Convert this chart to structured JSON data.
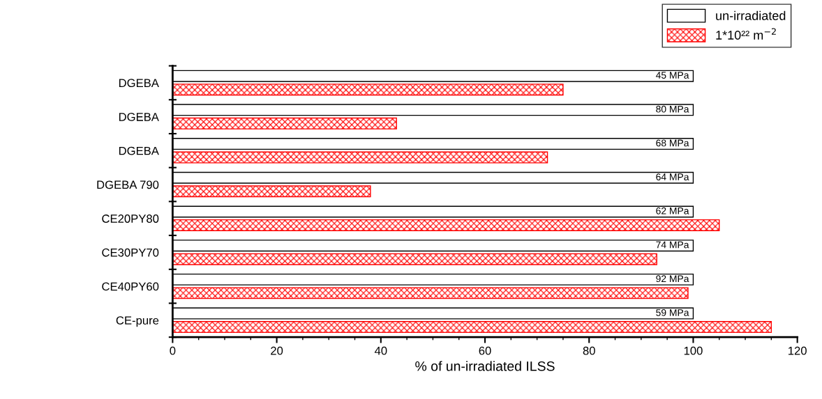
{
  "chart_data": {
    "type": "bar",
    "orientation": "horizontal",
    "xlabel": "% of un-irradiated ILSS",
    "categories": [
      "DGEBA",
      "DGEBA",
      "DGEBA",
      "DGEBA 790",
      "CE20PY80",
      "CE30PY70",
      "CE40PY60",
      "CE-pure"
    ],
    "series": [
      {
        "name": "un-irradiated",
        "color": "#ffffff",
        "values": [
          100,
          100,
          100,
          100,
          100,
          100,
          100,
          100
        ]
      },
      {
        "name": "1*10²² m$^{−2}$",
        "color": "#ff0000",
        "values": [
          75,
          43,
          72,
          38,
          105,
          93,
          99,
          115
        ]
      }
    ],
    "annotations": [
      "45 MPa",
      "80 MPa",
      "68 MPa",
      "64 MPa",
      "62 MPa",
      "74 MPa",
      "92 MPa",
      "59 MPa"
    ],
    "xlim": [
      0,
      120
    ],
    "xticks": [
      0,
      20,
      40,
      60,
      80,
      100,
      120
    ],
    "grid": false,
    "legend": "top right"
  }
}
